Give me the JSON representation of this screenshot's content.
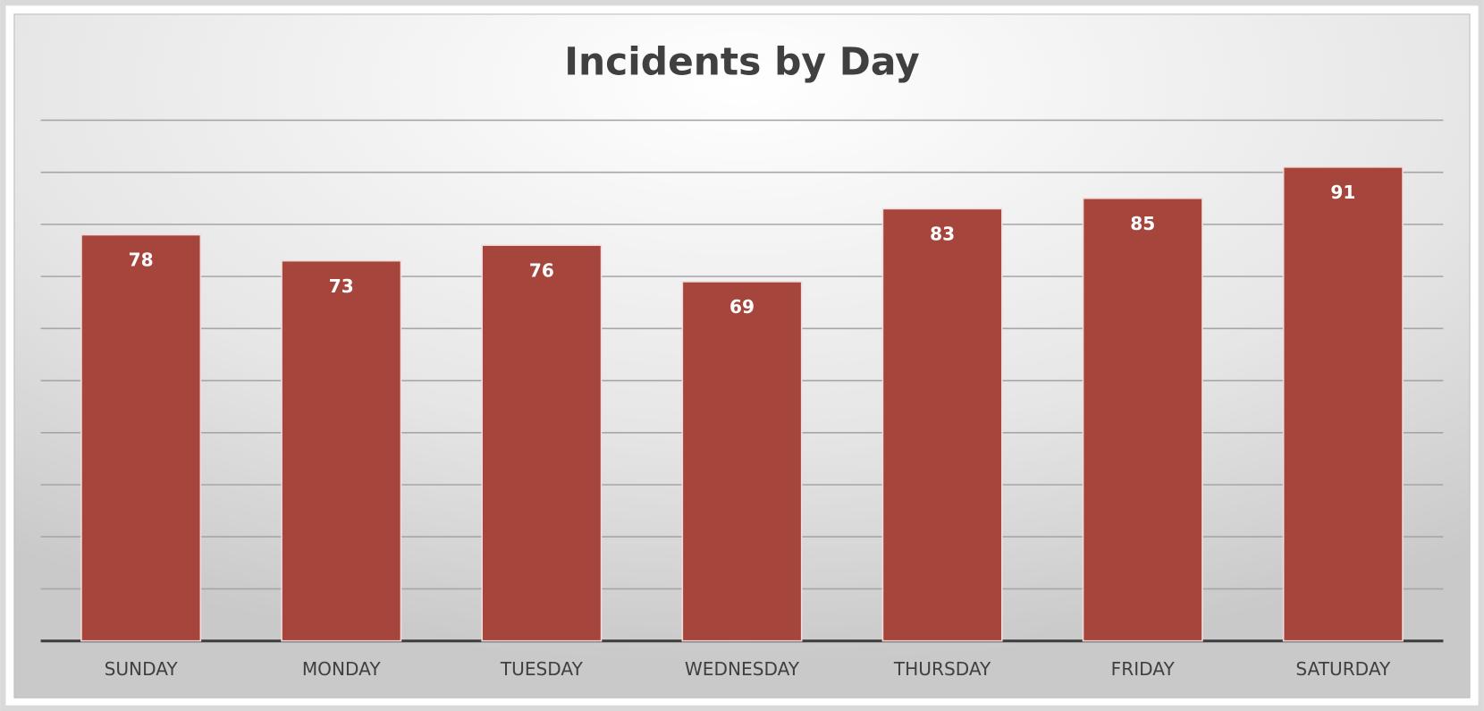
{
  "chart_data": {
    "type": "bar",
    "title": "Incidents by Day",
    "categories": [
      "SUNDAY",
      "MONDAY",
      "TUESDAY",
      "WEDNESDAY",
      "THURSDAY",
      "FRIDAY",
      "SATURDAY"
    ],
    "values": [
      78,
      73,
      76,
      69,
      83,
      85,
      91
    ],
    "color": "#a5453c",
    "ylim": [
      0,
      100
    ],
    "yticks": [
      0,
      10,
      20,
      30,
      40,
      50,
      60,
      70,
      80,
      90,
      100
    ],
    "grid": true
  }
}
